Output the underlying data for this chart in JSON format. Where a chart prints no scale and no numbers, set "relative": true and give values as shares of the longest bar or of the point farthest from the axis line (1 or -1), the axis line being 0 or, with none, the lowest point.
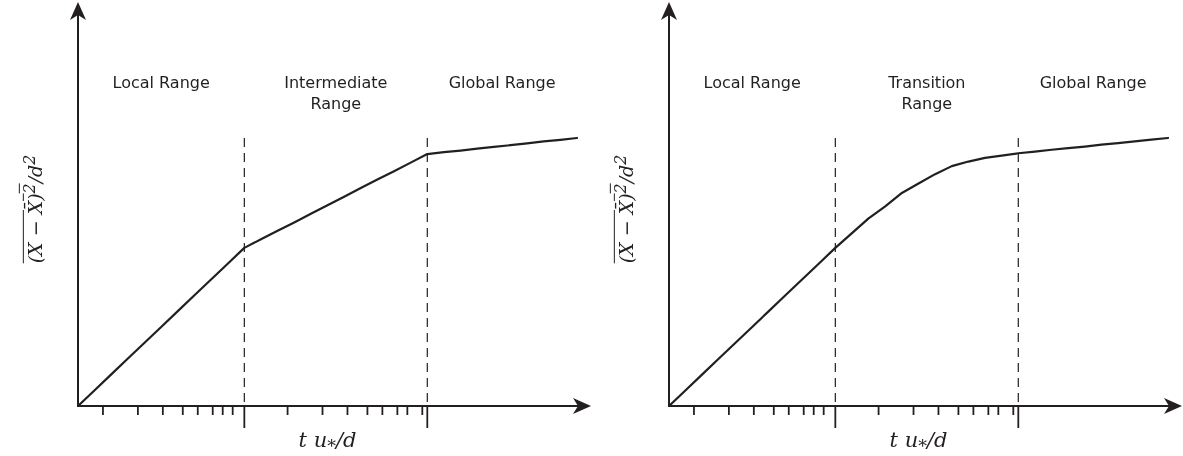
{
  "chart_data": [
    {
      "type": "line",
      "relative": true,
      "xlabel": "t u$_{*}$/d",
      "ylabel": "(X − X̄)$^{2}$/d$^{2}$",
      "categories": [
        null,
        null,
        null,
        null,
        null,
        null,
        null,
        null,
        null,
        null,
        null,
        null,
        null,
        null,
        null,
        null,
        null,
        null,
        null,
        null,
        null,
        null,
        null,
        null,
        null,
        null,
        null,
        null,
        null,
        null,
        null
      ],
      "series": [
        {
          "color": "#231f20",
          "values": [
            0,
            0.059,
            0.118,
            0.177,
            0.236,
            0.295,
            0.354,
            0.413,
            0.472,
            0.531,
            0.59,
            0.622,
            0.654,
            0.685,
            0.717,
            0.749,
            0.781,
            0.813,
            0.845,
            0.876,
            0.908,
            0.94,
            0.947,
            0.953,
            0.96,
            0.967,
            0.973,
            0.98,
            0.987,
            0.993,
            1
          ]
        }
      ],
      "annotations": [
        "Local Range",
        "Intermediate Range",
        "Global Range"
      ],
      "marker": "none",
      "line_style": "solid",
      "grid": false,
      "legend": false
    },
    {
      "type": "line",
      "relative": true,
      "xlabel": "t u$_{*}$/d",
      "ylabel": "(X − X̄)$^{2}$/d$^{2}$",
      "categories": [
        null,
        null,
        null,
        null,
        null,
        null,
        null,
        null,
        null,
        null,
        null,
        null,
        null,
        null,
        null,
        null,
        null,
        null,
        null,
        null,
        null,
        null,
        null,
        null,
        null,
        null,
        null,
        null,
        null,
        null,
        null
      ],
      "series": [
        {
          "color": "#231f20",
          "values": [
            0,
            0.059,
            0.118,
            0.177,
            0.236,
            0.295,
            0.354,
            0.413,
            0.472,
            0.531,
            0.59,
            0.645,
            0.7,
            0.745,
            0.795,
            0.83,
            0.865,
            0.895,
            0.912,
            0.926,
            0.934,
            0.943,
            0.949,
            0.956,
            0.962,
            0.968,
            0.975,
            0.981,
            0.987,
            0.994,
            1
          ]
        }
      ],
      "annotations": [
        "Local Range",
        "Transition Range",
        "Global Range"
      ],
      "marker": "none",
      "line_style": "solid",
      "grid": false,
      "legend": false
    }
  ]
}
